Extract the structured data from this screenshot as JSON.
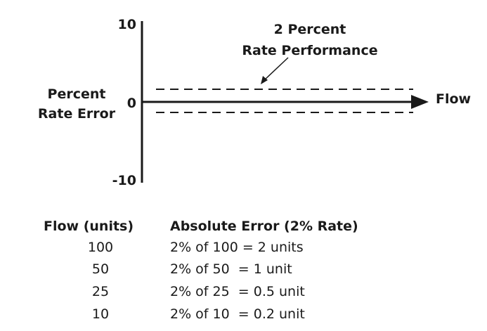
{
  "diagram": {
    "y_axis": {
      "label_line1": "Percent",
      "label_line2": "Rate Error",
      "tick_top": "10",
      "tick_zero": "0",
      "tick_bottom": "-10"
    },
    "x_axis": {
      "label": "Flow"
    },
    "band": {
      "title_line1": "2 Percent",
      "title_line2": "Rate Performance"
    }
  },
  "table": {
    "headers": [
      "Flow (units)",
      "Absolute Error (2% Rate)"
    ],
    "rows": [
      {
        "flow": "100",
        "error": "2% of 100 = 2 units"
      },
      {
        "flow": "50",
        "error": "2% of 50  = 1 unit"
      },
      {
        "flow": "25",
        "error": "2% of 25  = 0.5 unit"
      },
      {
        "flow": "10",
        "error": "2% of 10  = 0.2 unit"
      }
    ]
  }
}
